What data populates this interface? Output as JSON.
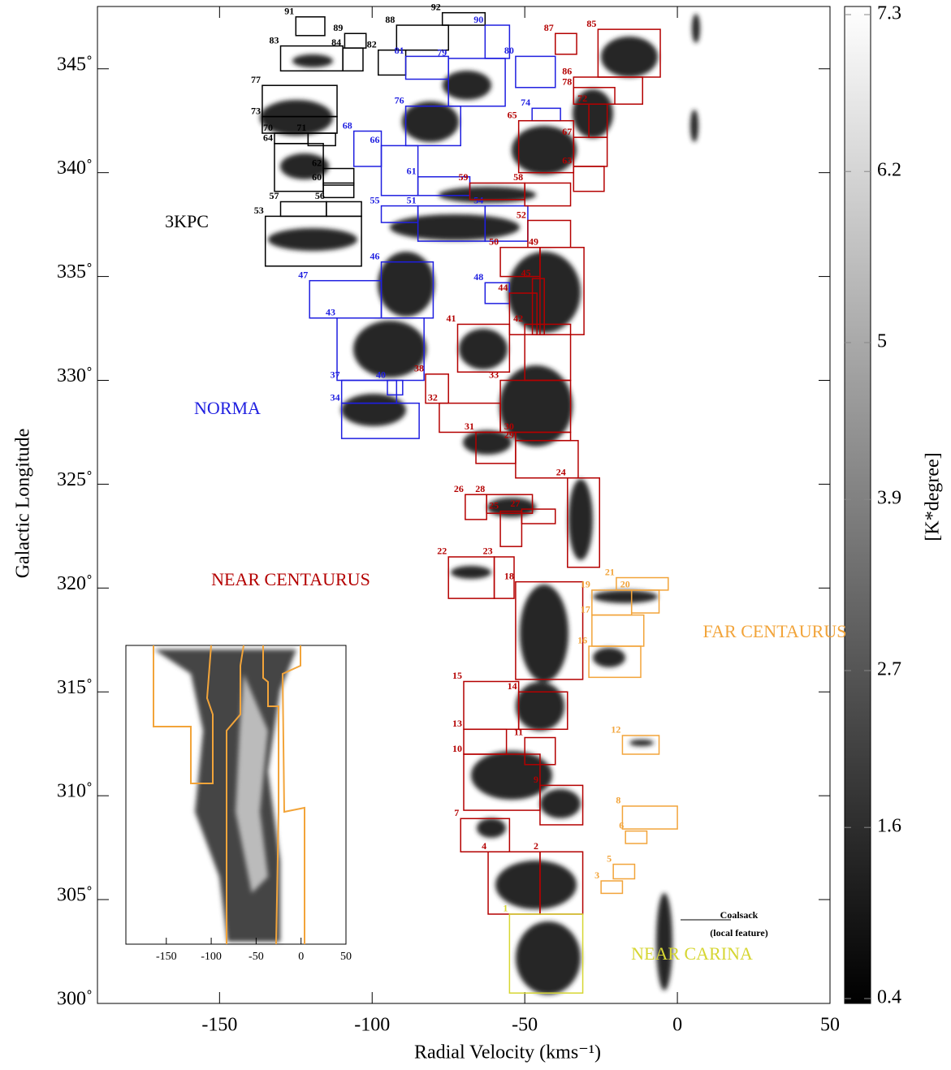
{
  "chart_data": {
    "type": "lv-boxes",
    "xlabel": "Radial Velocity (kms⁻¹)",
    "ylabel": "Galactic Longitude",
    "xlim": [
      -190,
      50
    ],
    "ylim": [
      300,
      348
    ],
    "xticks": [
      -150,
      -100,
      -50,
      0,
      50
    ],
    "yticks": [
      {
        "value": 300,
        "label": "300˚"
      },
      {
        "value": 305,
        "label": "305˚"
      },
      {
        "value": 310,
        "label": "310˚"
      },
      {
        "value": 315,
        "label": "315˚"
      },
      {
        "value": 320,
        "label": "320˚"
      },
      {
        "value": 325,
        "label": "325˚"
      },
      {
        "value": 330,
        "label": "330˚"
      },
      {
        "value": 335,
        "label": "335˚"
      },
      {
        "value": 340,
        "label": "340˚"
      },
      {
        "value": 345,
        "label": "345˚"
      }
    ],
    "groups": [
      {
        "name": "3KPC",
        "color": "#000000",
        "clouds": [
          {
            "label": "53",
            "vlim": [
              -135,
              -103.5
            ],
            "llim": [
              335.5,
              337.9
            ]
          },
          {
            "label": "56",
            "vlim": [
              -115,
              -103.5
            ],
            "llim": [
              337.9,
              338.6
            ]
          },
          {
            "label": "57",
            "vlim": [
              -130,
              -115
            ],
            "llim": [
              337.9,
              338.6
            ]
          },
          {
            "label": "60",
            "vlim": [
              -116,
              -106
            ],
            "llim": [
              338.8,
              339.5
            ]
          },
          {
            "label": "62",
            "vlim": [
              -116,
              -106
            ],
            "llim": [
              339.4,
              340.2
            ]
          },
          {
            "label": "64",
            "vlim": [
              -132,
              -116
            ],
            "llim": [
              339.1,
              341.4
            ]
          },
          {
            "label": "70",
            "vlim": [
              -132,
              -121
            ],
            "llim": [
              341.4,
              341.9
            ]
          },
          {
            "label": "71",
            "vlim": [
              -121,
              -112
            ],
            "llim": [
              341.3,
              341.9
            ]
          },
          {
            "label": "73",
            "vlim": [
              -136,
              -111.5
            ],
            "llim": [
              341.9,
              342.7
            ]
          },
          {
            "label": "77",
            "vlim": [
              -136,
              -111.5
            ],
            "llim": [
              342.7,
              344.2
            ]
          },
          {
            "label": "82",
            "vlim": [
              -98,
              -89
            ],
            "llim": [
              344.7,
              345.9
            ]
          },
          {
            "label": "83",
            "vlim": [
              -130,
              -109.6
            ],
            "llim": [
              344.9,
              346.1
            ]
          },
          {
            "label": "84",
            "vlim": [
              -109.6,
              -103
            ],
            "llim": [
              344.9,
              346
            ]
          },
          {
            "label": "88",
            "vlim": [
              -92,
              -75
            ],
            "llim": [
              345.9,
              347.1
            ]
          },
          {
            "label": "89",
            "vlim": [
              -109,
              -102
            ],
            "llim": [
              346,
              346.7
            ]
          },
          {
            "label": "91",
            "vlim": [
              -125,
              -115.5
            ],
            "llim": [
              346.6,
              347.5
            ]
          },
          {
            "label": "92",
            "vlim": [
              -77,
              -63
            ],
            "llim": [
              347.1,
              347.7
            ]
          }
        ]
      },
      {
        "name": "NORMA",
        "color": "#1f1fe0",
        "clouds": [
          {
            "label": "34",
            "vlim": [
              -110,
              -84.6
            ],
            "llim": [
              327.2,
              328.9
            ]
          },
          {
            "label": "37",
            "vlim": [
              -110,
              -92
            ],
            "llim": [
              328.9,
              330
            ]
          },
          {
            "label": "40",
            "vlim": [
              -95,
              -90
            ],
            "llim": [
              329.3,
              330
            ]
          },
          {
            "label": "43",
            "vlim": [
              -111.5,
              -83
            ],
            "llim": [
              330,
              333
            ]
          },
          {
            "label": "46",
            "vlim": [
              -97,
              -80
            ],
            "llim": [
              333,
              335.7
            ]
          },
          {
            "label": "47",
            "vlim": [
              -120.5,
              -97
            ],
            "llim": [
              333,
              334.8
            ]
          },
          {
            "label": "48",
            "vlim": [
              -63,
              -55
            ],
            "llim": [
              333.7,
              334.7
            ]
          },
          {
            "label": "51",
            "vlim": [
              -85,
              -63
            ],
            "llim": [
              336.7,
              338.4
            ]
          },
          {
            "label": "54",
            "vlim": [
              -63,
              -49
            ],
            "llim": [
              336.7,
              338.4
            ]
          },
          {
            "label": "55",
            "vlim": [
              -97,
              -85
            ],
            "llim": [
              337.6,
              338.4
            ]
          },
          {
            "label": "61",
            "vlim": [
              -85,
              -68
            ],
            "llim": [
              338.9,
              339.8
            ]
          },
          {
            "label": "66",
            "vlim": [
              -97,
              -85
            ],
            "llim": [
              338.9,
              341.3
            ]
          },
          {
            "label": "68",
            "vlim": [
              -106,
              -97
            ],
            "llim": [
              340.3,
              342
            ]
          },
          {
            "label": "74",
            "vlim": [
              -47.6,
              -38.3
            ],
            "llim": [
              342.5,
              343.1
            ]
          },
          {
            "label": "76",
            "vlim": [
              -89,
              -71
            ],
            "llim": [
              341.3,
              343.2
            ]
          },
          {
            "label": "79",
            "vlim": [
              -75,
              -56.4
            ],
            "llim": [
              343.2,
              345.5
            ]
          },
          {
            "label": "80",
            "vlim": [
              -53,
              -40
            ],
            "llim": [
              344.1,
              345.6
            ]
          },
          {
            "label": "81",
            "vlim": [
              -89,
              -75
            ],
            "llim": [
              344.5,
              345.6
            ]
          },
          {
            "label": "90",
            "vlim": [
              -63,
              -55
            ],
            "llim": [
              345.5,
              347.1
            ]
          }
        ]
      },
      {
        "name": "NEAR CENTAURUS",
        "color": "#b40000",
        "clouds": [
          {
            "label": "2",
            "vlim": [
              -45,
              -31
            ],
            "llim": [
              304.3,
              307.3
            ]
          },
          {
            "label": "4",
            "vlim": [
              -62,
              -45
            ],
            "llim": [
              304.3,
              307.3
            ]
          },
          {
            "label": "7",
            "vlim": [
              -71,
              -55
            ],
            "llim": [
              307.3,
              308.9
            ]
          },
          {
            "label": "9",
            "vlim": [
              -45,
              -31
            ],
            "llim": [
              308.6,
              310.5
            ]
          },
          {
            "label": "10",
            "vlim": [
              -70,
              -45
            ],
            "llim": [
              309.3,
              312
            ]
          },
          {
            "label": "11",
            "vlim": [
              -50,
              -40
            ],
            "llim": [
              311.5,
              312.8
            ]
          },
          {
            "label": "13",
            "vlim": [
              -70,
              -56
            ],
            "llim": [
              312,
              313.2
            ]
          },
          {
            "label": "14",
            "vlim": [
              -52,
              -36
            ],
            "llim": [
              313.2,
              315
            ]
          },
          {
            "label": "15",
            "vlim": [
              -70,
              -52
            ],
            "llim": [
              313.2,
              315.5
            ]
          },
          {
            "label": "18",
            "vlim": [
              -53,
              -31
            ],
            "llim": [
              315.6,
              320.3
            ]
          },
          {
            "label": "22",
            "vlim": [
              -75,
              -60
            ],
            "llim": [
              319.5,
              321.5
            ]
          },
          {
            "label": "23",
            "vlim": [
              -60,
              -53.5
            ],
            "llim": [
              319.5,
              321.5
            ]
          },
          {
            "label": "24",
            "vlim": [
              -36,
              -25.5
            ],
            "llim": [
              321,
              325.3
            ]
          },
          {
            "label": "25",
            "vlim": [
              -58,
              -51
            ],
            "llim": [
              322,
              323.7
            ]
          },
          {
            "label": "26",
            "vlim": [
              -69.5,
              -62.5
            ],
            "llim": [
              323.3,
              324.5
            ]
          },
          {
            "label": "27",
            "vlim": [
              -51,
              -40
            ],
            "llim": [
              323.1,
              323.8
            ]
          },
          {
            "label": "28",
            "vlim": [
              -62.5,
              -47.5
            ],
            "llim": [
              323.6,
              324.5
            ]
          },
          {
            "label": "29",
            "vlim": [
              -53,
              -32.5
            ],
            "llim": [
              325.3,
              327.1
            ]
          },
          {
            "label": "30",
            "vlim": [
              -53,
              -35
            ],
            "llim": [
              327.1,
              327.5
            ]
          },
          {
            "label": "31",
            "vlim": [
              -66,
              -53
            ],
            "llim": [
              326,
              327.5
            ]
          },
          {
            "label": "32",
            "vlim": [
              -78,
              -58
            ],
            "llim": [
              327.5,
              328.9
            ]
          },
          {
            "label": "33",
            "vlim": [
              -58,
              -35
            ],
            "llim": [
              327.5,
              330
            ]
          },
          {
            "label": "38",
            "vlim": [
              -82.5,
              -75
            ],
            "llim": [
              328.9,
              330.3
            ]
          },
          {
            "label": "41",
            "vlim": [
              -72,
              -55
            ],
            "llim": [
              330.4,
              332.7
            ]
          },
          {
            "label": "42",
            "vlim": [
              -50,
              -35
            ],
            "llim": [
              330,
              332.7
            ]
          },
          {
            "label": "44",
            "vlim": [
              -55,
              -46
            ],
            "llim": [
              332.2,
              334.2
            ]
          },
          {
            "label": "45",
            "vlim": [
              -47.5,
              -43.6
            ],
            "llim": [
              332.2,
              334.9
            ]
          },
          {
            "label": "49",
            "vlim": [
              -45,
              -30.6
            ],
            "llim": [
              332.2,
              336.4
            ]
          },
          {
            "label": "50",
            "vlim": [
              -58,
              -45
            ],
            "llim": [
              335,
              336.4
            ]
          },
          {
            "label": "52",
            "vlim": [
              -49,
              -35
            ],
            "llim": [
              336.4,
              337.7
            ]
          },
          {
            "label": "58",
            "vlim": [
              -50,
              -35
            ],
            "llim": [
              338.4,
              339.5
            ]
          },
          {
            "label": "59",
            "vlim": [
              -68,
              -50
            ],
            "llim": [
              338.7,
              339.5
            ]
          },
          {
            "label": "63",
            "vlim": [
              -34,
              -24
            ],
            "llim": [
              339.1,
              340.3
            ]
          },
          {
            "label": "65",
            "vlim": [
              -52,
              -34
            ],
            "llim": [
              340,
              342.5
            ]
          },
          {
            "label": "67",
            "vlim": [
              -34,
              -23
            ],
            "llim": [
              340.3,
              341.7
            ]
          },
          {
            "label": "72",
            "vlim": [
              -29,
              -23
            ],
            "llim": [
              341.7,
              343.3
            ]
          },
          {
            "label": "78",
            "vlim": [
              -34,
              -20.5
            ],
            "llim": [
              343.3,
              344.1
            ]
          },
          {
            "label": "85",
            "vlim": [
              -26,
              -5.6
            ],
            "llim": [
              344.6,
              346.9
            ]
          },
          {
            "label": "86",
            "vlim": [
              -34,
              -11.4
            ],
            "llim": [
              343.3,
              344.6
            ]
          },
          {
            "label": "87",
            "vlim": [
              -40,
              -33
            ],
            "llim": [
              345.7,
              346.7
            ]
          }
        ]
      },
      {
        "name": "FAR CENTAURUS",
        "color": "#f2a43a",
        "clouds": [
          {
            "label": "3",
            "vlim": [
              -25,
              -18
            ],
            "llim": [
              305.3,
              305.9
            ]
          },
          {
            "label": "5",
            "vlim": [
              -21,
              -14
            ],
            "llim": [
              306,
              306.7
            ]
          },
          {
            "label": "6",
            "vlim": [
              -17,
              -10
            ],
            "llim": [
              307.7,
              308.3
            ]
          },
          {
            "label": "8",
            "vlim": [
              -18,
              0
            ],
            "llim": [
              308.4,
              309.5
            ]
          },
          {
            "label": "12",
            "vlim": [
              -18,
              -6
            ],
            "llim": [
              312,
              312.9
            ]
          },
          {
            "label": "16",
            "vlim": [
              -29,
              -12
            ],
            "llim": [
              315.7,
              317.2
            ]
          },
          {
            "label": "17",
            "vlim": [
              -28,
              -11
            ],
            "llim": [
              317.2,
              318.7
            ]
          },
          {
            "label": "19",
            "vlim": [
              -28,
              -15
            ],
            "llim": [
              318.7,
              319.9
            ]
          },
          {
            "label": "20",
            "vlim": [
              -15,
              -6
            ],
            "llim": [
              318.8,
              319.9
            ]
          },
          {
            "label": "21",
            "vlim": [
              -20,
              -3
            ],
            "llim": [
              319.9,
              320.5
            ]
          }
        ]
      },
      {
        "name": "NEAR CARINA",
        "color": "#d6d633",
        "clouds": [
          {
            "label": "1",
            "vlim": [
              -55,
              -31
            ],
            "llim": [
              300.5,
              304.3
            ]
          }
        ]
      }
    ],
    "annotations": [
      {
        "text": "Coalsack"
      },
      {
        "text": "(local feature)"
      }
    ],
    "colorbar": {
      "label": "[K*degree]",
      "lim": [
        0.4,
        7.3
      ],
      "ticks": [
        0.4,
        1.6,
        2.7,
        3.9,
        5.0,
        6.2,
        7.3
      ]
    },
    "inset": {
      "xlim": [
        -195,
        50
      ],
      "xticks": [
        -150,
        -100,
        -50,
        0,
        50
      ]
    }
  }
}
